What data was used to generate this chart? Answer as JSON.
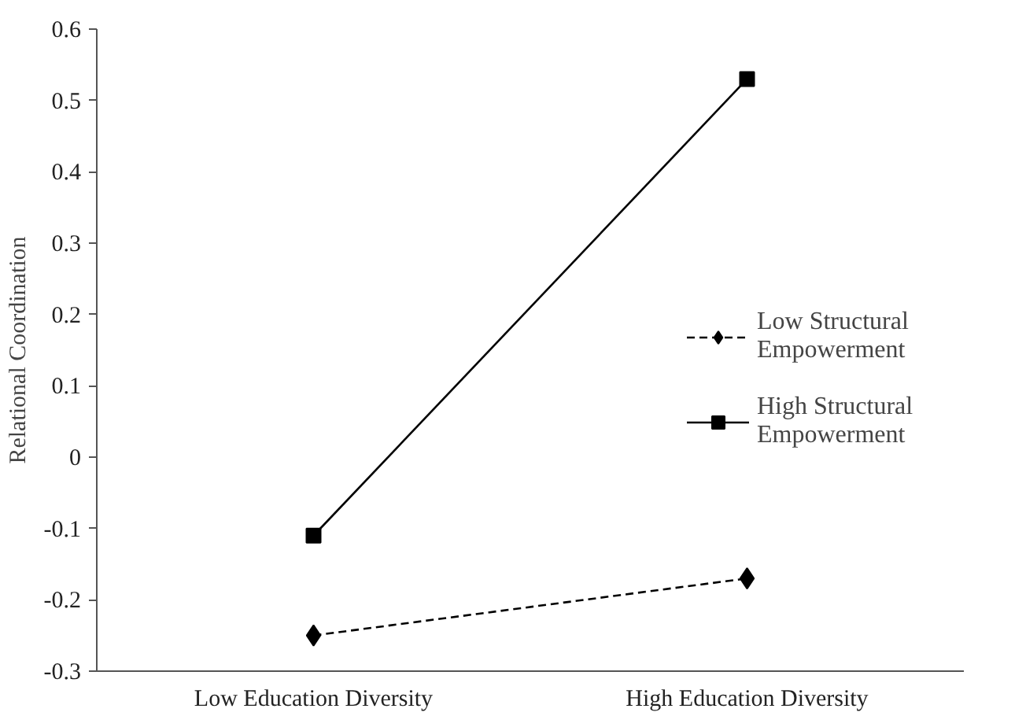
{
  "chart_data": {
    "type": "line",
    "ylabel": "Relational Coordination",
    "categories": [
      "Low Education Diversity",
      "High Education Diversity"
    ],
    "series": [
      {
        "name": "Low Structural Empowerment",
        "color": "#000000",
        "values": [
          -0.25,
          -0.17
        ],
        "marker": "diamond",
        "line_style": "dashed"
      },
      {
        "name": "High Structural Empowerment",
        "color": "#000000",
        "values": [
          -0.11,
          0.53
        ],
        "marker": "square",
        "line_style": "solid"
      }
    ],
    "ylim": [
      -0.3,
      0.6
    ],
    "yticks": [
      {
        "value": -0.3,
        "label": "-0.3"
      },
      {
        "value": -0.2,
        "label": "-0.2"
      },
      {
        "value": -0.1,
        "label": "-0.1"
      },
      0,
      0.1,
      0.2,
      0.3,
      0.4,
      0.5,
      0.6
    ],
    "grid": false,
    "legend": "right"
  }
}
